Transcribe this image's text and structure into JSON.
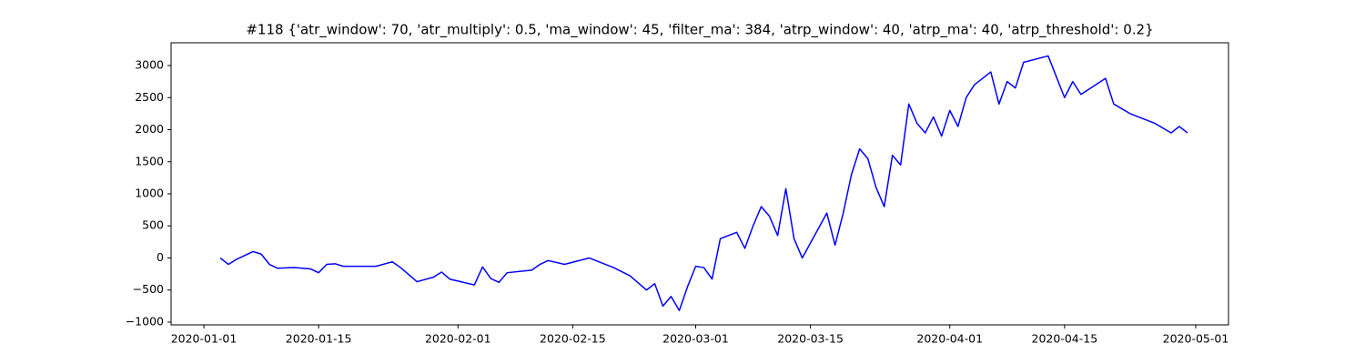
{
  "chart_data": {
    "type": "line",
    "title": "#118 {'atr_window': 70, 'atr_multiply': 0.5, 'ma_window': 45, 'filter_ma': 384, 'atrp_window': 40, 'atrp_ma': 40, 'atrp_threshold': 0.2}",
    "x": [
      "2020-01-03",
      "2020-01-04",
      "2020-01-05",
      "2020-01-07",
      "2020-01-08",
      "2020-01-09",
      "2020-01-10",
      "2020-01-12",
      "2020-01-14",
      "2020-01-15",
      "2020-01-16",
      "2020-01-17",
      "2020-01-18",
      "2020-01-22",
      "2020-01-24",
      "2020-01-25",
      "2020-01-27",
      "2020-01-29",
      "2020-01-30",
      "2020-01-31",
      "2020-02-03",
      "2020-02-04",
      "2020-02-05",
      "2020-02-06",
      "2020-02-07",
      "2020-02-10",
      "2020-02-11",
      "2020-02-12",
      "2020-02-14",
      "2020-02-17",
      "2020-02-19",
      "2020-02-20",
      "2020-02-22",
      "2020-02-24",
      "2020-02-25",
      "2020-02-26",
      "2020-02-27",
      "2020-02-28",
      "2020-02-29",
      "2020-03-01",
      "2020-03-02",
      "2020-03-03",
      "2020-03-04",
      "2020-03-05",
      "2020-03-06",
      "2020-03-07",
      "2020-03-08",
      "2020-03-09",
      "2020-03-10",
      "2020-03-11",
      "2020-03-12",
      "2020-03-13",
      "2020-03-14",
      "2020-03-17",
      "2020-03-18",
      "2020-03-19",
      "2020-03-20",
      "2020-03-21",
      "2020-03-22",
      "2020-03-23",
      "2020-03-24",
      "2020-03-25",
      "2020-03-26",
      "2020-03-27",
      "2020-03-28",
      "2020-03-29",
      "2020-03-30",
      "2020-03-31",
      "2020-04-01",
      "2020-04-02",
      "2020-04-03",
      "2020-04-04",
      "2020-04-06",
      "2020-04-07",
      "2020-04-08",
      "2020-04-09",
      "2020-04-10",
      "2020-04-13",
      "2020-04-15",
      "2020-04-16",
      "2020-04-17",
      "2020-04-20",
      "2020-04-21",
      "2020-04-23",
      "2020-04-24",
      "2020-04-26",
      "2020-04-28",
      "2020-04-29",
      "2020-04-30"
    ],
    "series": [
      {
        "color": "#0000ff",
        "values": [
          0,
          -100,
          -20,
          100,
          60,
          -100,
          -160,
          -150,
          -170,
          -230,
          -100,
          -90,
          -130,
          -130,
          -60,
          -150,
          -370,
          -300,
          -220,
          -330,
          -420,
          -140,
          -320,
          -380,
          -230,
          -190,
          -100,
          -40,
          -100,
          0,
          -100,
          -150,
          -280,
          -500,
          -400,
          -750,
          -600,
          -820,
          -450,
          -130,
          -150,
          -330,
          300,
          350,
          400,
          150,
          500,
          800,
          650,
          350,
          1080,
          300,
          0,
          700,
          200,
          700,
          1300,
          1700,
          1550,
          1100,
          800,
          1600,
          1450,
          2400,
          2100,
          1950,
          2200,
          1900,
          2300,
          2050,
          2500,
          2700,
          2900,
          2400,
          2750,
          2650,
          3050,
          3150,
          2500,
          2750,
          2550,
          2800,
          2400,
          2250,
          2200,
          2100,
          1950,
          2050,
          1950
        ]
      }
    ],
    "xlim": [
      "2019-12-28",
      "2020-05-05"
    ],
    "xticks": [
      "2020-01-01",
      "2020-01-15",
      "2020-02-01",
      "2020-02-15",
      "2020-03-01",
      "2020-03-15",
      "2020-04-01",
      "2020-04-15",
      "2020-05-01"
    ],
    "ylim": [
      -1043,
      3355
    ],
    "yticks": [
      {
        "value": -1000,
        "label": "−1000"
      },
      {
        "value": -500,
        "label": "−500"
      },
      0,
      500,
      1000,
      1500,
      2000,
      2500,
      3000
    ]
  }
}
